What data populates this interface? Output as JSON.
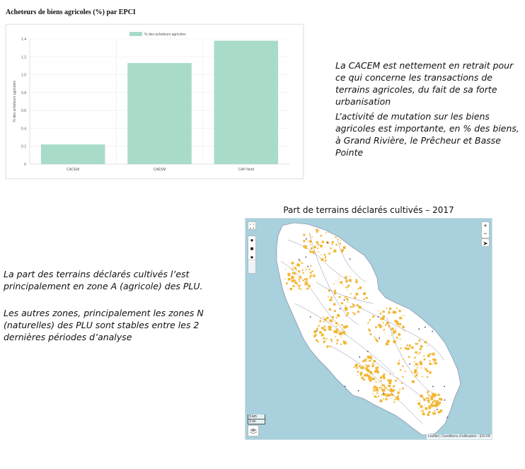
{
  "chart": {
    "title": "Acheteurs de biens agricoles (%) par EPCI"
  },
  "chart_data": {
    "type": "bar",
    "title": "Acheteurs de biens agricoles (%) par EPCI",
    "categories": [
      "CACEM",
      "CAESM",
      "CAP Nord"
    ],
    "series": [
      {
        "name": "% des acheteurs agricoles",
        "values": [
          0.22,
          1.13,
          1.38
        ]
      }
    ],
    "ylabel": "% des acheteurs agricoles",
    "xlabel": "",
    "ylim": [
      0,
      1.4
    ],
    "yticks": [
      "0",
      "0.2",
      "0.4",
      "0.6",
      "0.8",
      "1.0",
      "1.2",
      "1.4"
    ],
    "bar_color": "#a8dbc8",
    "grid": true,
    "legend_position": "top"
  },
  "text": {
    "para1": "La CACEM est nettement en retrait pour ce qui concerne les transactions de terrains agricoles, du fait de sa forte urbanisation",
    "para2": "L’activité de mutation sur les biens agricoles est importante, en % des biens,  à Grand Rivière, le Prêcheur et Basse Pointe",
    "para3": "La part des terrains déclarés cultivés l’est principalement en zone A (agricole) des PLU.",
    "para4": "Les autres zones, principalement les zones N (naturelles) des PLU sont stables entre les 2 dernières périodes d’analyse"
  },
  "map": {
    "title": "Part de terrains déclarés cultivés  – 2017",
    "sea_color": "#a8d0dd",
    "cultivated_color": "#f2b632",
    "scale_km": "5 km",
    "scale_mi": "3 mi",
    "attribution": "Leaflet | Conditions d'utilisation - EN FR",
    "controls": {
      "fullscreen_icon": "fullscreen-icon",
      "zoom_in": "+",
      "zoom_out": "−",
      "locate": "➤"
    }
  }
}
